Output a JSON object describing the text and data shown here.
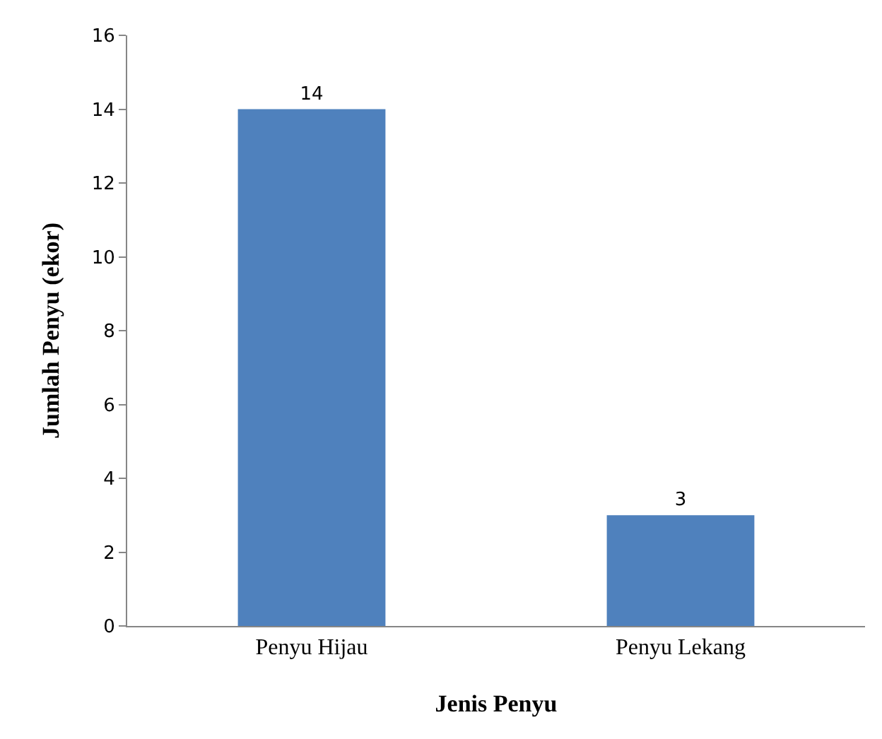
{
  "chart_data": {
    "type": "bar",
    "xlabel": "Jenis Penyu",
    "ylabel": "Jumlah Penyu (ekor)",
    "categories": [
      "Penyu Hijau",
      "Penyu Lekang"
    ],
    "values": [
      14,
      3
    ],
    "color": "#4f81bd",
    "ylim": [
      0,
      16
    ],
    "yticks": [
      0,
      2,
      4,
      6,
      8,
      10,
      12,
      14,
      16
    ],
    "data_labels": true,
    "grid": false,
    "legend": false
  }
}
